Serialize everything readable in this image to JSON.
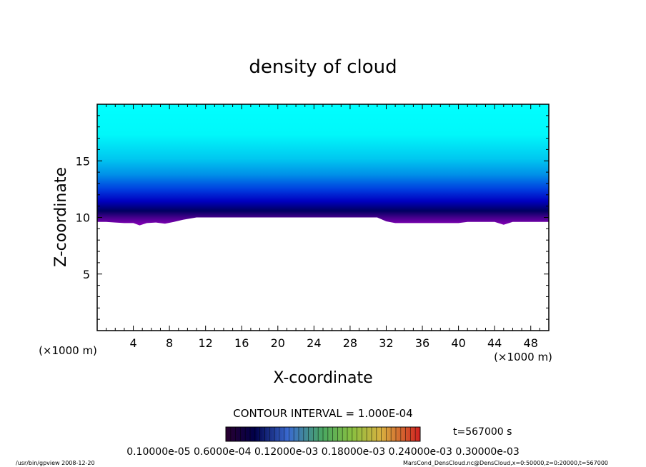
{
  "chart_data": {
    "type": "heatmap",
    "title": "density of cloud",
    "xlabel": "X-coordinate",
    "ylabel": "Z-coordinate",
    "x_unit": "(×1000 m)",
    "y_unit": "(×1000 m)",
    "xlim": [
      0,
      50
    ],
    "ylim": [
      0,
      20
    ],
    "xticks": [
      4,
      8,
      12,
      16,
      20,
      24,
      28,
      32,
      36,
      40,
      44,
      48
    ],
    "yticks": [
      5,
      10,
      15
    ],
    "cloud_base_km": 10,
    "cloud_base_profile": [
      {
        "x": 0,
        "z": 9.6
      },
      {
        "x": 1,
        "z": 9.6
      },
      {
        "x": 2,
        "z": 9.55
      },
      {
        "x": 3,
        "z": 9.5
      },
      {
        "x": 4,
        "z": 9.5
      },
      {
        "x": 4.7,
        "z": 9.3
      },
      {
        "x": 5.5,
        "z": 9.5
      },
      {
        "x": 6.5,
        "z": 9.55
      },
      {
        "x": 7.5,
        "z": 9.45
      },
      {
        "x": 8.5,
        "z": 9.6
      },
      {
        "x": 9.5,
        "z": 9.8
      },
      {
        "x": 11,
        "z": 10.0
      },
      {
        "x": 31,
        "z": 10.0
      },
      {
        "x": 32,
        "z": 9.65
      },
      {
        "x": 33,
        "z": 9.5
      },
      {
        "x": 36,
        "z": 9.5
      },
      {
        "x": 40,
        "z": 9.5
      },
      {
        "x": 41,
        "z": 9.6
      },
      {
        "x": 44,
        "z": 9.6
      },
      {
        "x": 45,
        "z": 9.35
      },
      {
        "x": 46,
        "z": 9.6
      },
      {
        "x": 48,
        "z": 9.6
      },
      {
        "x": 50,
        "z": 9.6
      }
    ],
    "contour_interval": "CONTOUR INTERVAL = 1.000E-04",
    "colorbar_labels": "0.10000e-05 0.6000e-04 0.12000e-03 0.18000e-03 0.24000e-03 0.30000e-03",
    "colors": {
      "cyan": "#00ffff",
      "blue": "#0000ff",
      "navy": "#00004a",
      "purple": "#8a00b8"
    }
  },
  "annotations": {
    "time": "t=567000 s",
    "footer_left": "/usr/bin/gpview   2008-12-20",
    "footer_right": "MarsCond_DensCloud.nc@DensCloud,x=0:50000,z=0:20000,t=567000"
  }
}
